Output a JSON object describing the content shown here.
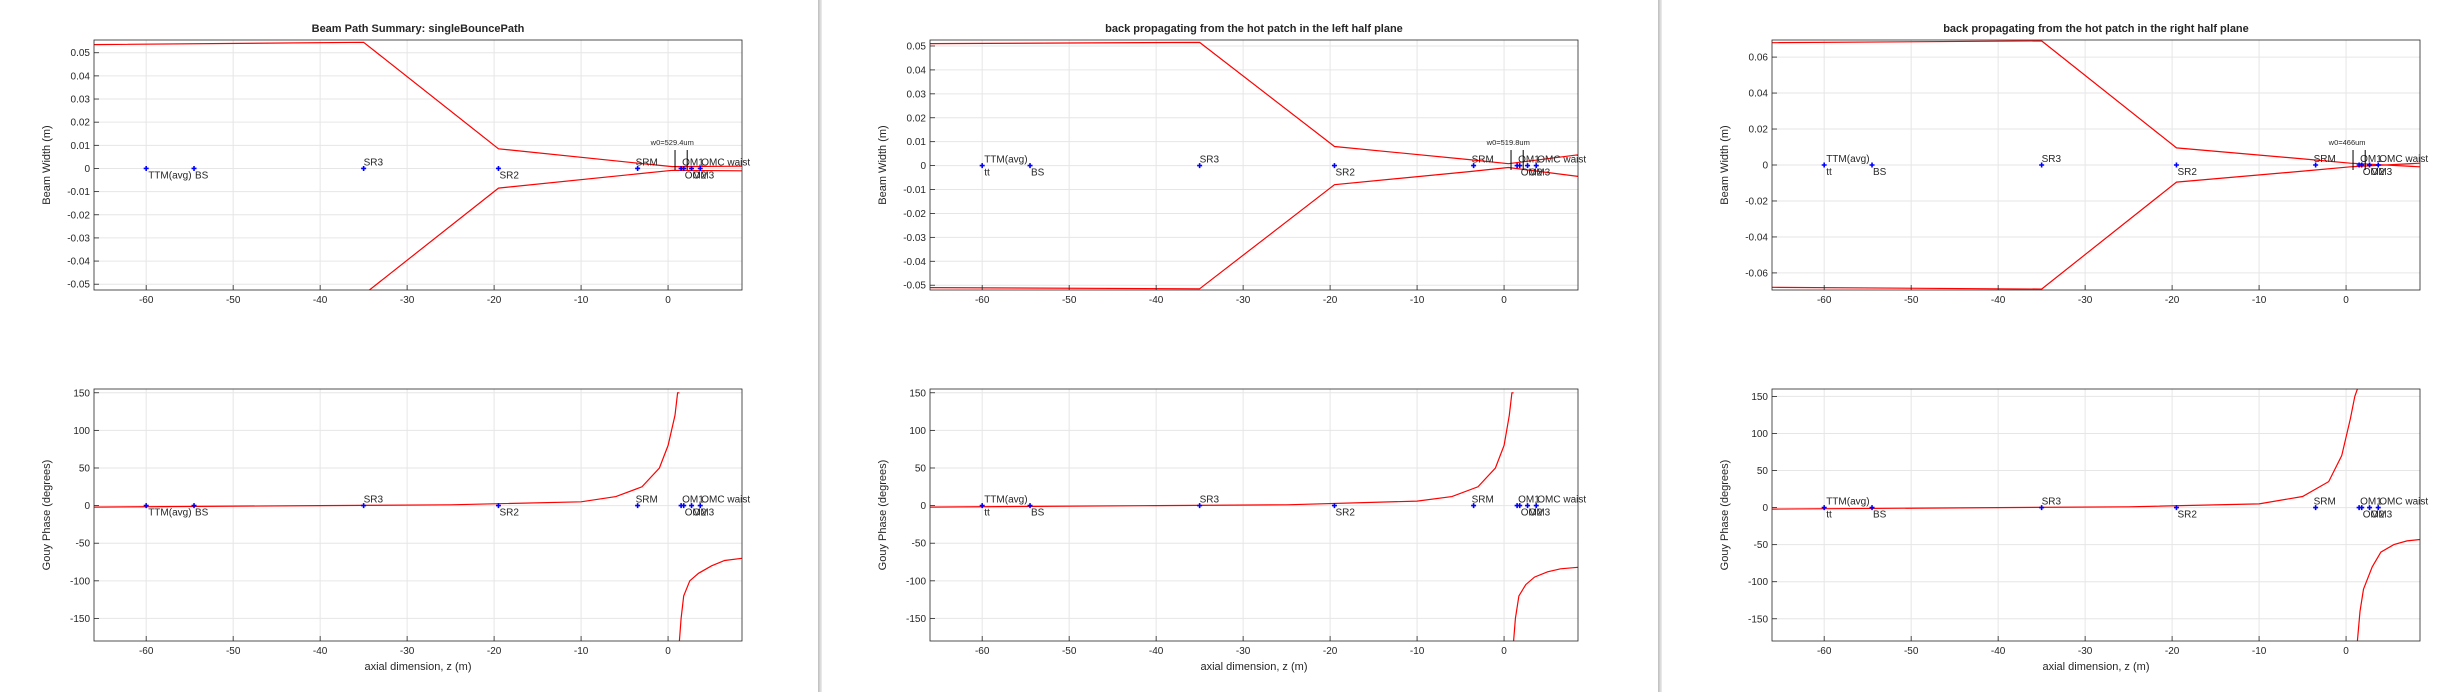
{
  "chart_data": [
    {
      "type": "line",
      "title": "Beam Path Summary: singleBouncePath",
      "xlabel": "",
      "ylabel": "Beam Width (m)",
      "xlim": [
        -66,
        8.5
      ],
      "ylim": [
        -0.0525,
        0.0555
      ],
      "xticks": [
        -60,
        -50,
        -40,
        -30,
        -20,
        -10,
        0
      ],
      "yticks": [
        0.05,
        0.04,
        0.03,
        0.02,
        0.01,
        0,
        -0.01,
        -0.02,
        -0.03,
        -0.04,
        -0.05
      ],
      "ytick_labels": [
        "0.05",
        "0.04",
        "0.03",
        "0.02",
        "0.01",
        "0",
        "-0.01",
        "-0.02",
        "-0.03",
        "-0.04",
        "-0.05"
      ],
      "grid": true,
      "series": [
        {
          "color": "#ff0000",
          "x": [
            -66,
            -35,
            -19.5,
            -4,
            0.5,
            8.5
          ],
          "y": [
            0.0535,
            0.0545,
            0.0085,
            0.0025,
            0.0008,
            0.001
          ]
        },
        {
          "color": "#ff0000",
          "x": [
            -66,
            -35,
            -19.5,
            -4,
            0.5,
            8.5
          ],
          "y": [
            -0.0535,
            -0.0545,
            -0.0085,
            -0.0025,
            -0.0008,
            -0.001
          ]
        }
      ],
      "optics": [
        {
          "label": "TTM(avg)",
          "z": -60,
          "y": 0,
          "label_dx": 2,
          "label_dy": 10
        },
        {
          "label": "BS",
          "z": -54.5,
          "y": 0,
          "label_dx": 1,
          "label_dy": 10
        },
        {
          "label": "SR3",
          "z": -35,
          "y": 0,
          "label_dx": 0,
          "label_dy": -3
        },
        {
          "label": "SR2",
          "z": -19.5,
          "y": 0,
          "label_dx": 1,
          "label_dy": 10
        },
        {
          "label": "SRM",
          "z": -3.5,
          "y": 0,
          "label_dx": -2,
          "label_dy": -3
        },
        {
          "label": "OM1",
          "z": 1.5,
          "y": 0,
          "label_dx": 1,
          "label_dy": -3
        },
        {
          "label": "OM2",
          "z": 1.8,
          "y": 0,
          "label_dx": 1,
          "label_dy": 10
        },
        {
          "label": "OM3",
          "z": 2.7,
          "y": 0,
          "label_dx": 1,
          "label_dy": 10
        },
        {
          "label": "OMC waist",
          "z": 3.7,
          "y": 0,
          "label_dx": 1,
          "label_dy": -3
        }
      ],
      "waist_annotations": [
        "w0=529.4um"
      ]
    },
    {
      "type": "line",
      "title": "",
      "xlabel": "axial dimension, z (m)",
      "ylabel": "Gouy Phase (degrees)",
      "xlim": [
        -66,
        8.5
      ],
      "ylim": [
        -180,
        155
      ],
      "xticks": [
        -60,
        -50,
        -40,
        -30,
        -20,
        -10,
        0
      ],
      "yticks": [
        150,
        100,
        50,
        0,
        -50,
        -100,
        -150
      ],
      "ytick_labels": [
        "150",
        "100",
        "50",
        "0",
        "-50",
        "-100",
        "-150"
      ],
      "grid": true,
      "series": [
        {
          "color": "#ff0000",
          "x": [
            -66,
            -40,
            -25,
            -10,
            -6,
            -3,
            -1,
            0,
            0.8,
            1.1,
            1.3
          ],
          "y": [
            -2,
            0,
            1,
            5,
            12,
            25,
            50,
            80,
            120,
            150,
            150
          ]
        },
        {
          "color": "#ff0000",
          "x": [
            1.3,
            1.5,
            1.8,
            2.5,
            3.5,
            5,
            6.5,
            8.5
          ],
          "y": [
            -180,
            -150,
            -120,
            -100,
            -90,
            -80,
            -73,
            -70
          ]
        }
      ],
      "optics": [
        {
          "label": "TTM(avg)",
          "z": -60,
          "y": 0,
          "label_dx": 2,
          "label_dy": 10
        },
        {
          "label": "BS",
          "z": -54.5,
          "y": 0,
          "label_dx": 1,
          "label_dy": 10
        },
        {
          "label": "SR3",
          "z": -35,
          "y": 0,
          "label_dx": 0,
          "label_dy": -3
        },
        {
          "label": "SR2",
          "z": -19.5,
          "y": 0,
          "label_dx": 1,
          "label_dy": 10
        },
        {
          "label": "SRM",
          "z": -3.5,
          "y": 0,
          "label_dx": -2,
          "label_dy": -3
        },
        {
          "label": "OM1",
          "z": 1.5,
          "y": 0,
          "label_dx": 1,
          "label_dy": -3
        },
        {
          "label": "OM2",
          "z": 1.8,
          "y": 0,
          "label_dx": 1,
          "label_dy": 10
        },
        {
          "label": "OM3",
          "z": 2.7,
          "y": 0,
          "label_dx": 1,
          "label_dy": 10
        },
        {
          "label": "OMC waist",
          "z": 3.7,
          "y": 0,
          "label_dx": 1,
          "label_dy": -3
        }
      ]
    },
    {
      "type": "line",
      "title": "back propagating from the hot patch in the left half plane",
      "xlabel": "",
      "ylabel": "Beam Width (m)",
      "xlim": [
        -66,
        8.5
      ],
      "ylim": [
        -0.052,
        0.0525
      ],
      "xticks": [
        -60,
        -50,
        -40,
        -30,
        -20,
        -10,
        0
      ],
      "yticks": [
        0.05,
        0.04,
        0.03,
        0.02,
        0.01,
        0,
        -0.01,
        -0.02,
        -0.03,
        -0.04,
        -0.05
      ],
      "ytick_labels": [
        "0.05",
        "0.04",
        "0.03",
        "0.02",
        "0.01",
        "0",
        "-0.01",
        "-0.02",
        "-0.03",
        "-0.04",
        "-0.05"
      ],
      "grid": true,
      "series": [
        {
          "color": "#ff0000",
          "x": [
            -66,
            -35,
            -19.5,
            -4,
            0.5,
            8.5
          ],
          "y": [
            0.051,
            0.0515,
            0.008,
            0.0025,
            0.0008,
            0.0045
          ]
        },
        {
          "color": "#ff0000",
          "x": [
            -66,
            -35,
            -19.5,
            -4,
            0.5,
            8.5
          ],
          "y": [
            -0.051,
            -0.0515,
            -0.008,
            -0.0025,
            -0.0008,
            -0.0045
          ]
        }
      ],
      "optics": [
        {
          "label": "TTM(avg)",
          "z": -60,
          "y": 0,
          "label_dx": 2,
          "label_dy": -3
        },
        {
          "label": "tt",
          "z": -60,
          "y": 0,
          "label_dx": 2,
          "label_dy": 10
        },
        {
          "label": "BS",
          "z": -54.5,
          "y": 0,
          "label_dx": 1,
          "label_dy": 10
        },
        {
          "label": "SR3",
          "z": -35,
          "y": 0,
          "label_dx": 0,
          "label_dy": -3
        },
        {
          "label": "SR2",
          "z": -19.5,
          "y": 0,
          "label_dx": 1,
          "label_dy": 10
        },
        {
          "label": "SRM",
          "z": -3.5,
          "y": 0,
          "label_dx": -2,
          "label_dy": -3
        },
        {
          "label": "OM1",
          "z": 1.5,
          "y": 0,
          "label_dx": 1,
          "label_dy": -3
        },
        {
          "label": "OM2",
          "z": 1.8,
          "y": 0,
          "label_dx": 1,
          "label_dy": 10
        },
        {
          "label": "OM3",
          "z": 2.7,
          "y": 0,
          "label_dx": 1,
          "label_dy": 10
        },
        {
          "label": "OMC waist",
          "z": 3.7,
          "y": 0,
          "label_dx": 1,
          "label_dy": -3
        }
      ],
      "waist_annotations": [
        "w0=519.8um"
      ]
    },
    {
      "type": "line",
      "title": "",
      "xlabel": "axial dimension, z (m)",
      "ylabel": "Gouy Phase (degrees)",
      "xlim": [
        -66,
        8.5
      ],
      "ylim": [
        -180,
        155
      ],
      "xticks": [
        -60,
        -50,
        -40,
        -30,
        -20,
        -10,
        0
      ],
      "yticks": [
        150,
        100,
        50,
        0,
        -50,
        -100,
        -150
      ],
      "ytick_labels": [
        "150",
        "100",
        "50",
        "0",
        "-50",
        "-100",
        "-150"
      ],
      "grid": true,
      "series": [
        {
          "color": "#ff0000",
          "x": [
            -66,
            -40,
            -25,
            -10,
            -6,
            -3,
            -1,
            0,
            0.6,
            0.9,
            1.1
          ],
          "y": [
            -2,
            0,
            1,
            6,
            12,
            25,
            50,
            80,
            120,
            150,
            150
          ]
        },
        {
          "color": "#ff0000",
          "x": [
            1.1,
            1.3,
            1.7,
            2.5,
            3.5,
            5,
            6.5,
            8.5
          ],
          "y": [
            -180,
            -150,
            -120,
            -105,
            -95,
            -88,
            -84,
            -82
          ]
        }
      ],
      "optics": [
        {
          "label": "TTM(avg)",
          "z": -60,
          "y": 0,
          "label_dx": 2,
          "label_dy": -3
        },
        {
          "label": "tt",
          "z": -60,
          "y": 0,
          "label_dx": 2,
          "label_dy": 10
        },
        {
          "label": "BS",
          "z": -54.5,
          "y": 0,
          "label_dx": 1,
          "label_dy": 10
        },
        {
          "label": "SR3",
          "z": -35,
          "y": 0,
          "label_dx": 0,
          "label_dy": -3
        },
        {
          "label": "SR2",
          "z": -19.5,
          "y": 0,
          "label_dx": 1,
          "label_dy": 10
        },
        {
          "label": "SRM",
          "z": -3.5,
          "y": 0,
          "label_dx": -2,
          "label_dy": -3
        },
        {
          "label": "OM1",
          "z": 1.5,
          "y": 0,
          "label_dx": 1,
          "label_dy": -3
        },
        {
          "label": "OM2",
          "z": 1.8,
          "y": 0,
          "label_dx": 1,
          "label_dy": 10
        },
        {
          "label": "OM3",
          "z": 2.7,
          "y": 0,
          "label_dx": 1,
          "label_dy": 10
        },
        {
          "label": "OMC waist",
          "z": 3.7,
          "y": 0,
          "label_dx": 1,
          "label_dy": -3
        }
      ]
    },
    {
      "type": "line",
      "title": "back propagating from the hot patch in the right half plane",
      "xlabel": "",
      "ylabel": "Beam Width (m)",
      "xlim": [
        -66,
        8.5
      ],
      "ylim": [
        -0.0695,
        0.0695
      ],
      "xticks": [
        -60,
        -50,
        -40,
        -30,
        -20,
        -10,
        0
      ],
      "yticks": [
        0.06,
        0.04,
        0.02,
        0,
        -0.02,
        -0.04,
        -0.06
      ],
      "ytick_labels": [
        "0.06",
        "0.04",
        "0.02",
        "0",
        "-0.02",
        "-0.04",
        "-0.06"
      ],
      "grid": true,
      "series": [
        {
          "color": "#ff0000",
          "x": [
            -66,
            -35,
            -19.5,
            -4,
            0.5,
            8.5
          ],
          "y": [
            0.068,
            0.069,
            0.0095,
            0.003,
            0.001,
            -0.001
          ]
        },
        {
          "color": "#ff0000",
          "x": [
            -66,
            -35,
            -19.5,
            -4,
            0.5,
            8.5
          ],
          "y": [
            -0.068,
            -0.069,
            -0.0095,
            -0.003,
            -0.001,
            0.001
          ]
        }
      ],
      "optics": [
        {
          "label": "TTM(avg)",
          "z": -60,
          "y": 0,
          "label_dx": 2,
          "label_dy": -3
        },
        {
          "label": "tt",
          "z": -60,
          "y": 0,
          "label_dx": 2,
          "label_dy": 10
        },
        {
          "label": "BS",
          "z": -54.5,
          "y": 0,
          "label_dx": 1,
          "label_dy": 10
        },
        {
          "label": "SR3",
          "z": -35,
          "y": 0,
          "label_dx": 0,
          "label_dy": -3
        },
        {
          "label": "SR2",
          "z": -19.5,
          "y": 0,
          "label_dx": 1,
          "label_dy": 10
        },
        {
          "label": "SRM",
          "z": -3.5,
          "y": 0,
          "label_dx": -2,
          "label_dy": -3
        },
        {
          "label": "OM1",
          "z": 1.5,
          "y": 0,
          "label_dx": 1,
          "label_dy": -3
        },
        {
          "label": "OM2",
          "z": 1.8,
          "y": 0,
          "label_dx": 1,
          "label_dy": 10
        },
        {
          "label": "OM3",
          "z": 2.7,
          "y": 0,
          "label_dx": 1,
          "label_dy": 10
        },
        {
          "label": "OMC waist",
          "z": 3.7,
          "y": 0,
          "label_dx": 1,
          "label_dy": -3
        }
      ],
      "waist_annotations": [
        "w0=466um"
      ]
    },
    {
      "type": "line",
      "title": "",
      "xlabel": "axial dimension, z (m)",
      "ylabel": "Gouy Phase (degrees)",
      "xlim": [
        -66,
        8.5
      ],
      "ylim": [
        -180,
        160
      ],
      "xticks": [
        -60,
        -50,
        -40,
        -30,
        -20,
        -10,
        0
      ],
      "yticks": [
        150,
        100,
        50,
        0,
        -50,
        -100,
        -150
      ],
      "ytick_labels": [
        "150",
        "100",
        "50",
        "0",
        "-50",
        "-100",
        "-150"
      ],
      "grid": true,
      "series": [
        {
          "color": "#ff0000",
          "x": [
            -66,
            -40,
            -25,
            -10,
            -5,
            -2,
            -0.5,
            0.5,
            1,
            1.3
          ],
          "y": [
            -2,
            0,
            1,
            5,
            15,
            35,
            70,
            120,
            150,
            160
          ]
        },
        {
          "color": "#ff0000",
          "x": [
            1.3,
            1.6,
            2,
            3,
            4,
            5.5,
            7,
            8.5
          ],
          "y": [
            -180,
            -140,
            -110,
            -80,
            -60,
            -50,
            -45,
            -43
          ]
        }
      ],
      "optics": [
        {
          "label": "TTM(avg)",
          "z": -60,
          "y": 0,
          "label_dx": 2,
          "label_dy": -3
        },
        {
          "label": "tt",
          "z": -60,
          "y": 0,
          "label_dx": 2,
          "label_dy": 10
        },
        {
          "label": "BS",
          "z": -54.5,
          "y": 0,
          "label_dx": 1,
          "label_dy": 10
        },
        {
          "label": "SR3",
          "z": -35,
          "y": 0,
          "label_dx": 0,
          "label_dy": -3
        },
        {
          "label": "SR2",
          "z": -19.5,
          "y": 0,
          "label_dx": 1,
          "label_dy": 10
        },
        {
          "label": "SRM",
          "z": -3.5,
          "y": 0,
          "label_dx": -2,
          "label_dy": -3
        },
        {
          "label": "OM1",
          "z": 1.5,
          "y": 0,
          "label_dx": 1,
          "label_dy": -3
        },
        {
          "label": "OM2",
          "z": 1.8,
          "y": 0,
          "label_dx": 1,
          "label_dy": 10
        },
        {
          "label": "OM3",
          "z": 2.7,
          "y": 0,
          "label_dx": 1,
          "label_dy": 10
        },
        {
          "label": "OMC waist",
          "z": 3.7,
          "y": 0,
          "label_dx": 1,
          "label_dy": -3
        }
      ]
    }
  ],
  "colors": {
    "trace": "#ff0000",
    "optic_marker": "#0000ff",
    "grid": "#e6e6e6",
    "axis": "#262626"
  }
}
